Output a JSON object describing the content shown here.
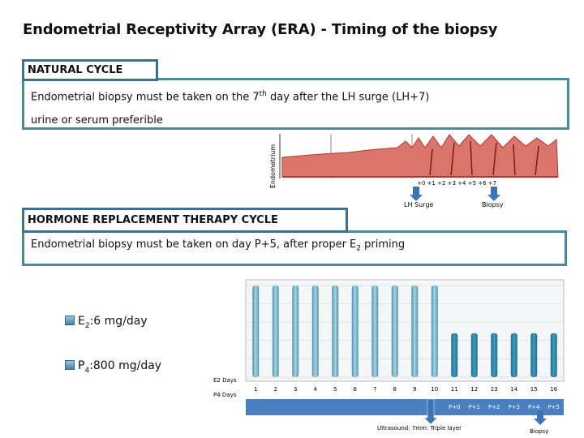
{
  "title": "Endometrial Receptivity Array (ERA) - Timing of the biopsy",
  "natural": {
    "tag": "NATURAL CYCLE",
    "line1_a": "Endometrial biopsy must be taken on the 7",
    "line1_sup": "th",
    "line1_b": " day after the LH surge (LH+7)",
    "line2": "urine or serum preferible",
    "figure": {
      "axis_label": "Endometrium",
      "days": "+0  +1  +2  +3  +4  +5  +6  +7",
      "lh_label": "LH Surge",
      "biopsy_label": "Biopsy"
    }
  },
  "hrt": {
    "tag": "HORMONE REPLACEMENT THERAPY CYCLE",
    "line_a": "Endometrial biopsy must be taken on day P+5, after proper E",
    "line_sub": "2",
    "line_b": " priming",
    "legend": [
      {
        "pre": "E",
        "sub": "2",
        "text": ":6 mg/day"
      },
      {
        "pre": "P",
        "sub": "4",
        "text": ":800 mg/day"
      }
    ],
    "chart": {
      "row_label_e2": "E2 Days",
      "row_label_p4": "P4 Days",
      "days": [
        "1",
        "2",
        "3",
        "4",
        "5",
        "6",
        "7",
        "8",
        "9",
        "10",
        "11",
        "12",
        "13",
        "14",
        "15",
        "16"
      ],
      "p_labels": [
        "P+0",
        "P+1",
        "P+2",
        "P+3",
        "P+4",
        "P+5"
      ],
      "ultrasound_label": "Ultrasound: 7mm: Triple layer",
      "biopsy_label": "Biopsy",
      "e2_bar_height": 1.0,
      "p4_start_day": 11,
      "p4_bar_height": 0.48
    }
  },
  "colors": {
    "border_dark": "#3d6f8f",
    "border_teal": "#4a8aa0",
    "bar_e2": "#6fb0cc",
    "bar_p4": "#2e86a8",
    "arrow": "#3d74b5",
    "endometrium": "#c0392b"
  }
}
